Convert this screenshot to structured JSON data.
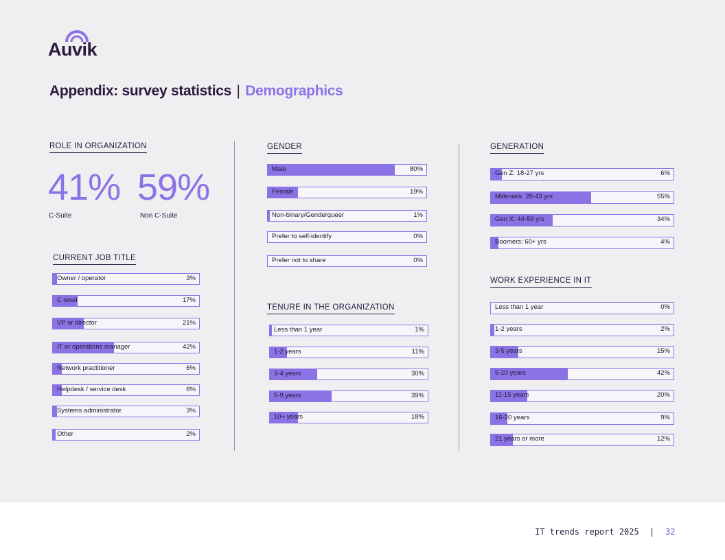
{
  "brand": {
    "logo_text": "Auvik",
    "accent_color": "#8b73e6",
    "dark_color": "#2a1b3d"
  },
  "header": {
    "title_main": "Appendix: survey statistics",
    "separator": "|",
    "title_sub": "Demographics"
  },
  "role": {
    "title": "ROLE IN ORGANIZATION",
    "stats": [
      {
        "value": "41%",
        "caption": "C-Suite"
      },
      {
        "value": "59%",
        "caption": "Non C-Suite"
      }
    ]
  },
  "job_title": {
    "title": "CURRENT JOB TITLE",
    "items": [
      {
        "label": "Owner / operator",
        "value": "3%",
        "pct": 3
      },
      {
        "label": "C-level",
        "value": "17%",
        "pct": 17
      },
      {
        "label": "VP or director",
        "value": "21%",
        "pct": 21
      },
      {
        "label": "IT or operations manager",
        "value": "42%",
        "pct": 42
      },
      {
        "label": "Network practitioner",
        "value": "6%",
        "pct": 6
      },
      {
        "label": "Helpdesk / service desk",
        "value": "6%",
        "pct": 6
      },
      {
        "label": "Systems administrator",
        "value": "3%",
        "pct": 3
      },
      {
        "label": "Other",
        "value": "2%",
        "pct": 2
      }
    ]
  },
  "gender": {
    "title": "GENDER",
    "items": [
      {
        "label": "Male",
        "value": "80%",
        "pct": 80
      },
      {
        "label": "Female",
        "value": "19%",
        "pct": 19
      },
      {
        "label": "Non-binary/Genderqueer",
        "value": "1%",
        "pct": 1
      },
      {
        "label": "Prefer to self-identify",
        "value": "0%",
        "pct": 0
      },
      {
        "label": "Prefer not to share",
        "value": "0%",
        "pct": 0
      }
    ]
  },
  "tenure": {
    "title": "TENURE IN THE ORGANIZATION",
    "items": [
      {
        "label": "Less than 1 year",
        "value": "1%",
        "pct": 1
      },
      {
        "label": "1-2 years",
        "value": "11%",
        "pct": 11
      },
      {
        "label": "3-4 years",
        "value": "30%",
        "pct": 30
      },
      {
        "label": "5-9 years",
        "value": "39%",
        "pct": 39
      },
      {
        "label": "10+ years",
        "value": "18%",
        "pct": 18
      }
    ]
  },
  "generation": {
    "title": "GENERATION",
    "items": [
      {
        "label": "Gen Z: 18-27 yrs",
        "value": "6%",
        "pct": 6
      },
      {
        "label": "Millenials: 28-43 yrs",
        "value": "55%",
        "pct": 55
      },
      {
        "label": "Gen X: 44-59 yrs",
        "value": "34%",
        "pct": 34
      },
      {
        "label": "Boomers: 60+ yrs",
        "value": "4%",
        "pct": 4
      }
    ]
  },
  "experience": {
    "title": "WORK EXPERIENCE IN IT",
    "items": [
      {
        "label": "Less than 1 year",
        "value": "0%",
        "pct": 0
      },
      {
        "label": "1-2 years",
        "value": "2%",
        "pct": 2
      },
      {
        "label": "3-5 years",
        "value": "15%",
        "pct": 15
      },
      {
        "label": "6-10 years",
        "value": "42%",
        "pct": 42
      },
      {
        "label": "11-15 years",
        "value": "20%",
        "pct": 20
      },
      {
        "label": "16-20 years",
        "value": "9%",
        "pct": 9
      },
      {
        "label": "21 years or more",
        "value": "12%",
        "pct": 12
      }
    ]
  },
  "footer": {
    "report": "IT trends report 2025",
    "separator": "|",
    "page": "32"
  }
}
